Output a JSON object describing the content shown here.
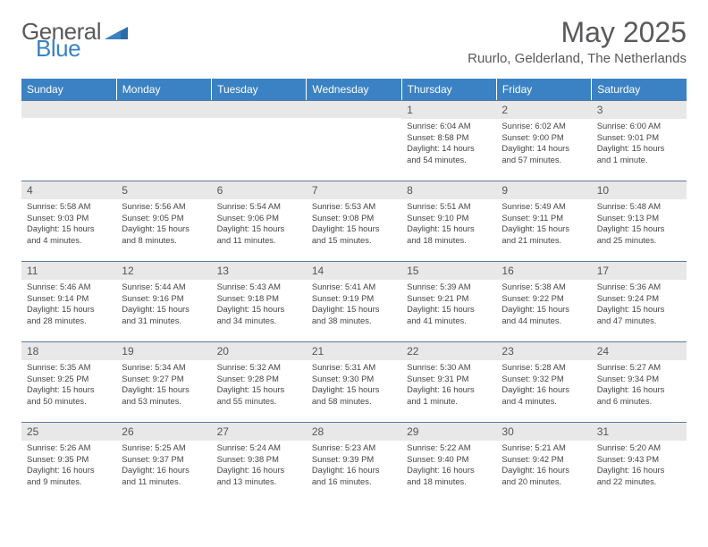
{
  "brand": {
    "part1": "General",
    "part2": "Blue"
  },
  "title": "May 2025",
  "location": "Ruurlo, Gelderland, The Netherlands",
  "colors": {
    "header_bg": "#3b82c4",
    "header_fg": "#ffffff",
    "band_bg": "#e8e8e8",
    "band_border": "#5a7a9a",
    "text": "#4a4a4a",
    "title_color": "#58595b"
  },
  "day_headers": [
    "Sunday",
    "Monday",
    "Tuesday",
    "Wednesday",
    "Thursday",
    "Friday",
    "Saturday"
  ],
  "weeks": [
    [
      {
        "n": "",
        "sr": "",
        "ss": "",
        "d1": "",
        "d2": ""
      },
      {
        "n": "",
        "sr": "",
        "ss": "",
        "d1": "",
        "d2": ""
      },
      {
        "n": "",
        "sr": "",
        "ss": "",
        "d1": "",
        "d2": ""
      },
      {
        "n": "",
        "sr": "",
        "ss": "",
        "d1": "",
        "d2": ""
      },
      {
        "n": "1",
        "sr": "Sunrise: 6:04 AM",
        "ss": "Sunset: 8:58 PM",
        "d1": "Daylight: 14 hours",
        "d2": "and 54 minutes."
      },
      {
        "n": "2",
        "sr": "Sunrise: 6:02 AM",
        "ss": "Sunset: 9:00 PM",
        "d1": "Daylight: 14 hours",
        "d2": "and 57 minutes."
      },
      {
        "n": "3",
        "sr": "Sunrise: 6:00 AM",
        "ss": "Sunset: 9:01 PM",
        "d1": "Daylight: 15 hours",
        "d2": "and 1 minute."
      }
    ],
    [
      {
        "n": "4",
        "sr": "Sunrise: 5:58 AM",
        "ss": "Sunset: 9:03 PM",
        "d1": "Daylight: 15 hours",
        "d2": "and 4 minutes."
      },
      {
        "n": "5",
        "sr": "Sunrise: 5:56 AM",
        "ss": "Sunset: 9:05 PM",
        "d1": "Daylight: 15 hours",
        "d2": "and 8 minutes."
      },
      {
        "n": "6",
        "sr": "Sunrise: 5:54 AM",
        "ss": "Sunset: 9:06 PM",
        "d1": "Daylight: 15 hours",
        "d2": "and 11 minutes."
      },
      {
        "n": "7",
        "sr": "Sunrise: 5:53 AM",
        "ss": "Sunset: 9:08 PM",
        "d1": "Daylight: 15 hours",
        "d2": "and 15 minutes."
      },
      {
        "n": "8",
        "sr": "Sunrise: 5:51 AM",
        "ss": "Sunset: 9:10 PM",
        "d1": "Daylight: 15 hours",
        "d2": "and 18 minutes."
      },
      {
        "n": "9",
        "sr": "Sunrise: 5:49 AM",
        "ss": "Sunset: 9:11 PM",
        "d1": "Daylight: 15 hours",
        "d2": "and 21 minutes."
      },
      {
        "n": "10",
        "sr": "Sunrise: 5:48 AM",
        "ss": "Sunset: 9:13 PM",
        "d1": "Daylight: 15 hours",
        "d2": "and 25 minutes."
      }
    ],
    [
      {
        "n": "11",
        "sr": "Sunrise: 5:46 AM",
        "ss": "Sunset: 9:14 PM",
        "d1": "Daylight: 15 hours",
        "d2": "and 28 minutes."
      },
      {
        "n": "12",
        "sr": "Sunrise: 5:44 AM",
        "ss": "Sunset: 9:16 PM",
        "d1": "Daylight: 15 hours",
        "d2": "and 31 minutes."
      },
      {
        "n": "13",
        "sr": "Sunrise: 5:43 AM",
        "ss": "Sunset: 9:18 PM",
        "d1": "Daylight: 15 hours",
        "d2": "and 34 minutes."
      },
      {
        "n": "14",
        "sr": "Sunrise: 5:41 AM",
        "ss": "Sunset: 9:19 PM",
        "d1": "Daylight: 15 hours",
        "d2": "and 38 minutes."
      },
      {
        "n": "15",
        "sr": "Sunrise: 5:39 AM",
        "ss": "Sunset: 9:21 PM",
        "d1": "Daylight: 15 hours",
        "d2": "and 41 minutes."
      },
      {
        "n": "16",
        "sr": "Sunrise: 5:38 AM",
        "ss": "Sunset: 9:22 PM",
        "d1": "Daylight: 15 hours",
        "d2": "and 44 minutes."
      },
      {
        "n": "17",
        "sr": "Sunrise: 5:36 AM",
        "ss": "Sunset: 9:24 PM",
        "d1": "Daylight: 15 hours",
        "d2": "and 47 minutes."
      }
    ],
    [
      {
        "n": "18",
        "sr": "Sunrise: 5:35 AM",
        "ss": "Sunset: 9:25 PM",
        "d1": "Daylight: 15 hours",
        "d2": "and 50 minutes."
      },
      {
        "n": "19",
        "sr": "Sunrise: 5:34 AM",
        "ss": "Sunset: 9:27 PM",
        "d1": "Daylight: 15 hours",
        "d2": "and 53 minutes."
      },
      {
        "n": "20",
        "sr": "Sunrise: 5:32 AM",
        "ss": "Sunset: 9:28 PM",
        "d1": "Daylight: 15 hours",
        "d2": "and 55 minutes."
      },
      {
        "n": "21",
        "sr": "Sunrise: 5:31 AM",
        "ss": "Sunset: 9:30 PM",
        "d1": "Daylight: 15 hours",
        "d2": "and 58 minutes."
      },
      {
        "n": "22",
        "sr": "Sunrise: 5:30 AM",
        "ss": "Sunset: 9:31 PM",
        "d1": "Daylight: 16 hours",
        "d2": "and 1 minute."
      },
      {
        "n": "23",
        "sr": "Sunrise: 5:28 AM",
        "ss": "Sunset: 9:32 PM",
        "d1": "Daylight: 16 hours",
        "d2": "and 4 minutes."
      },
      {
        "n": "24",
        "sr": "Sunrise: 5:27 AM",
        "ss": "Sunset: 9:34 PM",
        "d1": "Daylight: 16 hours",
        "d2": "and 6 minutes."
      }
    ],
    [
      {
        "n": "25",
        "sr": "Sunrise: 5:26 AM",
        "ss": "Sunset: 9:35 PM",
        "d1": "Daylight: 16 hours",
        "d2": "and 9 minutes."
      },
      {
        "n": "26",
        "sr": "Sunrise: 5:25 AM",
        "ss": "Sunset: 9:37 PM",
        "d1": "Daylight: 16 hours",
        "d2": "and 11 minutes."
      },
      {
        "n": "27",
        "sr": "Sunrise: 5:24 AM",
        "ss": "Sunset: 9:38 PM",
        "d1": "Daylight: 16 hours",
        "d2": "and 13 minutes."
      },
      {
        "n": "28",
        "sr": "Sunrise: 5:23 AM",
        "ss": "Sunset: 9:39 PM",
        "d1": "Daylight: 16 hours",
        "d2": "and 16 minutes."
      },
      {
        "n": "29",
        "sr": "Sunrise: 5:22 AM",
        "ss": "Sunset: 9:40 PM",
        "d1": "Daylight: 16 hours",
        "d2": "and 18 minutes."
      },
      {
        "n": "30",
        "sr": "Sunrise: 5:21 AM",
        "ss": "Sunset: 9:42 PM",
        "d1": "Daylight: 16 hours",
        "d2": "and 20 minutes."
      },
      {
        "n": "31",
        "sr": "Sunrise: 5:20 AM",
        "ss": "Sunset: 9:43 PM",
        "d1": "Daylight: 16 hours",
        "d2": "and 22 minutes."
      }
    ]
  ]
}
